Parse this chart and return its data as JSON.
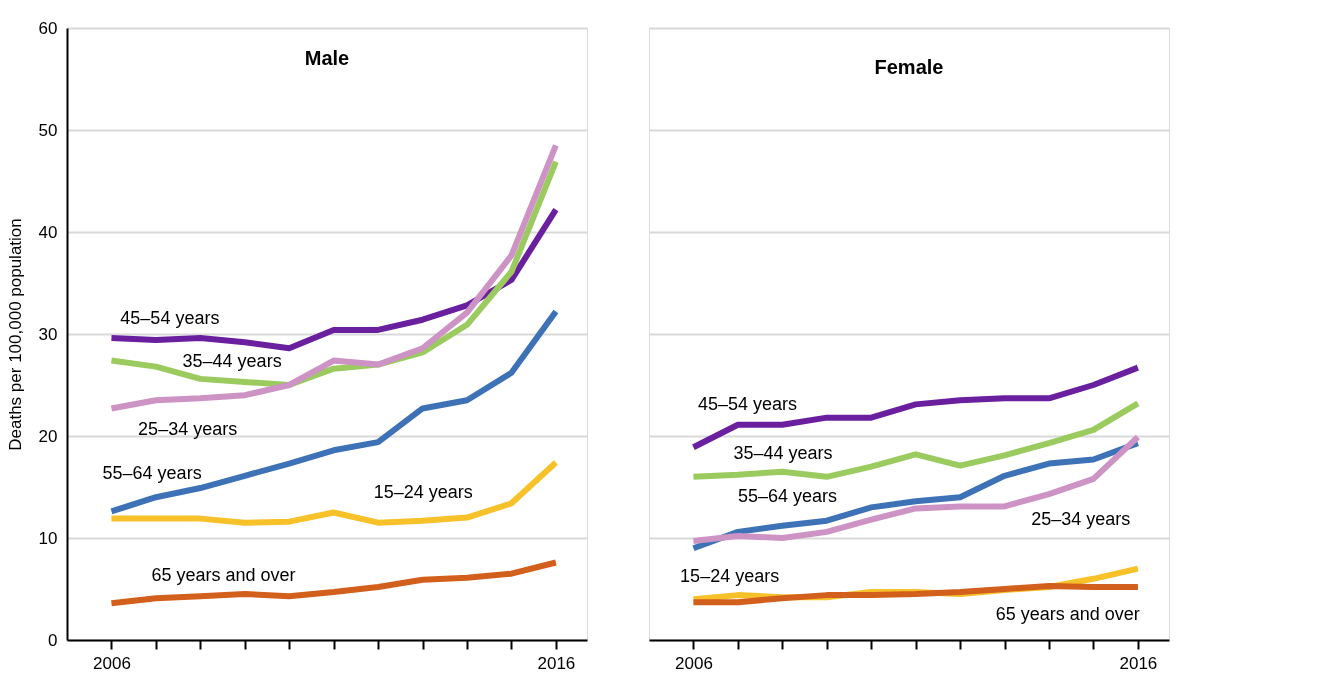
{
  "chart_data": [
    {
      "type": "line",
      "title": "Male",
      "ylabel": "Deaths per 100,000 population",
      "x": [
        2006,
        2007,
        2008,
        2009,
        2010,
        2011,
        2012,
        2013,
        2014,
        2015,
        2016
      ],
      "xlim": [
        2005,
        2016.7
      ],
      "xticks": [
        2006,
        {
          "value": 2007,
          "label": null
        },
        {
          "value": 2008,
          "label": null
        },
        {
          "value": 2009,
          "label": null
        },
        {
          "value": 2010,
          "label": null
        },
        {
          "value": 2011,
          "label": null
        },
        {
          "value": 2012,
          "label": null
        },
        {
          "value": 2013,
          "label": null
        },
        {
          "value": 2014,
          "label": null
        },
        {
          "value": 2015,
          "label": null
        },
        2016
      ],
      "ylim": [
        0,
        60
      ],
      "yticks": [
        0,
        10,
        20,
        30,
        40,
        50,
        60
      ],
      "grid": "y",
      "legend": false,
      "line_style": "solid",
      "marker": "none",
      "series": [
        {
          "name": "45–54 years",
          "color": "#6a1f9e",
          "values": [
            29.6,
            29.4,
            29.6,
            29.2,
            28.6,
            30.4,
            30.4,
            31.4,
            32.8,
            35.3,
            42.2
          ]
        },
        {
          "name": "35–44 years",
          "color": "#9bcb5f",
          "values": [
            27.4,
            26.8,
            25.6,
            25.3,
            25.0,
            26.6,
            27.0,
            28.2,
            30.9,
            36.1,
            46.9
          ]
        },
        {
          "name": "25–34 years",
          "color": "#cc93c4",
          "values": [
            22.7,
            23.5,
            23.7,
            24.0,
            25.0,
            27.4,
            27.0,
            28.6,
            32.1,
            37.7,
            48.5
          ]
        },
        {
          "name": "55–64 years",
          "color": "#3e72b6",
          "values": [
            12.6,
            14.0,
            14.9,
            16.1,
            17.3,
            18.6,
            19.4,
            22.7,
            23.5,
            26.2,
            32.2
          ]
        },
        {
          "name": "15–24 years",
          "color": "#f7c12a",
          "values": [
            11.9,
            11.9,
            11.9,
            11.5,
            11.6,
            12.5,
            11.5,
            11.7,
            12.0,
            13.4,
            17.4
          ]
        },
        {
          "name": "65 years and over",
          "color": "#d35f1c",
          "values": [
            3.6,
            4.1,
            4.3,
            4.5,
            4.3,
            4.7,
            5.2,
            5.9,
            6.1,
            6.5,
            7.6
          ]
        }
      ]
    },
    {
      "type": "line",
      "title": "Female",
      "x": [
        2006,
        2007,
        2008,
        2009,
        2010,
        2011,
        2012,
        2013,
        2014,
        2015,
        2016
      ],
      "xlim": [
        2005,
        2016.7
      ],
      "xticks": [
        2006,
        {
          "value": 2007,
          "label": null
        },
        {
          "value": 2008,
          "label": null
        },
        {
          "value": 2009,
          "label": null
        },
        {
          "value": 2010,
          "label": null
        },
        {
          "value": 2011,
          "label": null
        },
        {
          "value": 2012,
          "label": null
        },
        {
          "value": 2013,
          "label": null
        },
        {
          "value": 2014,
          "label": null
        },
        {
          "value": 2015,
          "label": null
        },
        2016
      ],
      "ylim": [
        0,
        60
      ],
      "yticks": [
        0,
        10,
        20,
        30,
        40,
        50,
        60
      ],
      "tick_labels": "x",
      "grid": "y",
      "legend": false,
      "line_style": "solid",
      "marker": "none",
      "series": [
        {
          "name": "45–54 years",
          "color": "#6a1f9e",
          "values": [
            18.9,
            21.1,
            21.1,
            21.8,
            21.8,
            23.1,
            23.5,
            23.7,
            23.7,
            25.0,
            26.7
          ]
        },
        {
          "name": "35–44 years",
          "color": "#9bcb5f",
          "values": [
            16.0,
            16.2,
            16.5,
            16.0,
            17.0,
            18.2,
            17.1,
            18.1,
            19.3,
            20.6,
            23.2
          ]
        },
        {
          "name": "55–64 years",
          "color": "#3e72b6",
          "values": [
            9.0,
            10.6,
            11.2,
            11.7,
            13.0,
            13.6,
            14.0,
            16.1,
            17.3,
            17.7,
            19.3
          ]
        },
        {
          "name": "25–34 years",
          "color": "#cc93c4",
          "values": [
            9.7,
            10.2,
            10.0,
            10.6,
            11.8,
            12.9,
            13.1,
            13.1,
            14.3,
            15.8,
            19.9
          ]
        },
        {
          "name": "15–24 years",
          "color": "#f7c12a",
          "values": [
            4.0,
            4.4,
            4.2,
            4.2,
            4.7,
            4.7,
            4.5,
            4.9,
            5.2,
            6.0,
            7.0
          ]
        },
        {
          "name": "65 years and over",
          "color": "#d35f1c",
          "values": [
            3.7,
            3.7,
            4.1,
            4.4,
            4.4,
            4.5,
            4.7,
            5.0,
            5.3,
            5.2,
            5.2
          ]
        }
      ]
    }
  ]
}
